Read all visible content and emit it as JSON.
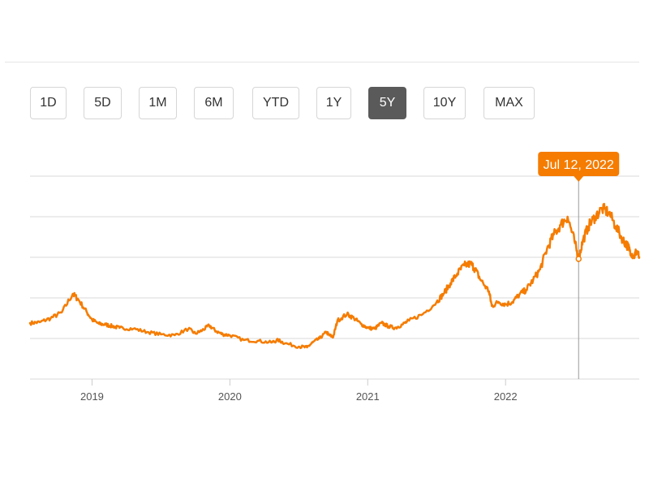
{
  "range_selector": {
    "buttons": [
      {
        "label": "1D",
        "active": false
      },
      {
        "label": "5D",
        "active": false
      },
      {
        "label": "1M",
        "active": false
      },
      {
        "label": "6M",
        "active": false
      },
      {
        "label": "YTD",
        "active": false
      },
      {
        "label": "1Y",
        "active": false
      },
      {
        "label": "5Y",
        "active": true
      },
      {
        "label": "10Y",
        "active": false
      },
      {
        "label": "MAX",
        "active": false
      }
    ]
  },
  "colors": {
    "line": "#f57c00",
    "tooltip_bg": "#f57c00",
    "grid": "#d9d9d9",
    "crosshair": "#999999",
    "active_button": "#5a5a5a"
  },
  "tooltip": {
    "label": "Jul 12, 2022"
  },
  "chart_data": {
    "type": "line",
    "title": "",
    "xlabel": "",
    "ylabel": "",
    "x_range": [
      2018.55,
      2022.97
    ],
    "y_range": [
      0,
      250
    ],
    "y_gridlines": [
      50,
      100,
      150,
      200,
      250
    ],
    "y_tick_labels_shown": false,
    "x_ticks": [
      {
        "value": 2019,
        "label": "2019"
      },
      {
        "value": 2020,
        "label": "2020"
      },
      {
        "value": 2021,
        "label": "2021"
      },
      {
        "value": 2022,
        "label": "2022"
      }
    ],
    "crosshair_x": 2022.53,
    "legend": "none",
    "series": [
      {
        "x": [
          2018.55,
          2018.62,
          2018.7,
          2018.78,
          2018.86,
          2018.9,
          2018.96,
          2019.0,
          2019.05,
          2019.1,
          2019.15,
          2019.2,
          2019.3,
          2019.4,
          2019.5,
          2019.6,
          2019.7,
          2019.75,
          2019.8,
          2019.85,
          2019.9,
          2019.95,
          2020.0,
          2020.1,
          2020.2,
          2020.3,
          2020.35,
          2020.4,
          2020.5,
          2020.56,
          2020.6,
          2020.65,
          2020.7,
          2020.72,
          2020.75,
          2020.78,
          2020.85,
          2020.9,
          2020.95,
          2021.0,
          2021.05,
          2021.1,
          2021.15,
          2021.2,
          2021.25,
          2021.3,
          2021.4,
          2021.5,
          2021.55,
          2021.6,
          2021.65,
          2021.7,
          2021.75,
          2021.78,
          2021.82,
          2021.88,
          2021.9,
          2021.95,
          2022.0,
          2022.05,
          2022.1,
          2022.15,
          2022.2,
          2022.25,
          2022.3,
          2022.35,
          2022.4,
          2022.45,
          2022.5,
          2022.53,
          2022.56,
          2022.6,
          2022.65,
          2022.7,
          2022.75,
          2022.8,
          2022.85,
          2022.88,
          2022.9,
          2022.93,
          2022.95,
          2022.97
        ],
        "values": [
          69,
          70,
          75,
          82,
          105,
          98,
          83,
          73,
          68,
          67,
          65,
          63,
          62,
          58,
          55,
          54,
          62,
          56,
          60,
          66,
          59,
          55,
          54,
          48,
          47,
          45,
          48,
          44,
          40,
          39,
          45,
          50,
          58,
          54,
          52,
          72,
          80,
          75,
          68,
          63,
          62,
          69,
          65,
          63,
          67,
          72,
          80,
          95,
          105,
          118,
          130,
          140,
          142,
          135,
          122,
          108,
          90,
          95,
          92,
          95,
          104,
          110,
          122,
          135,
          160,
          178,
          190,
          200,
          170,
          148,
          170,
          188,
          200,
          210,
          205,
          188,
          172,
          165,
          160,
          150,
          158,
          150
        ]
      }
    ]
  }
}
